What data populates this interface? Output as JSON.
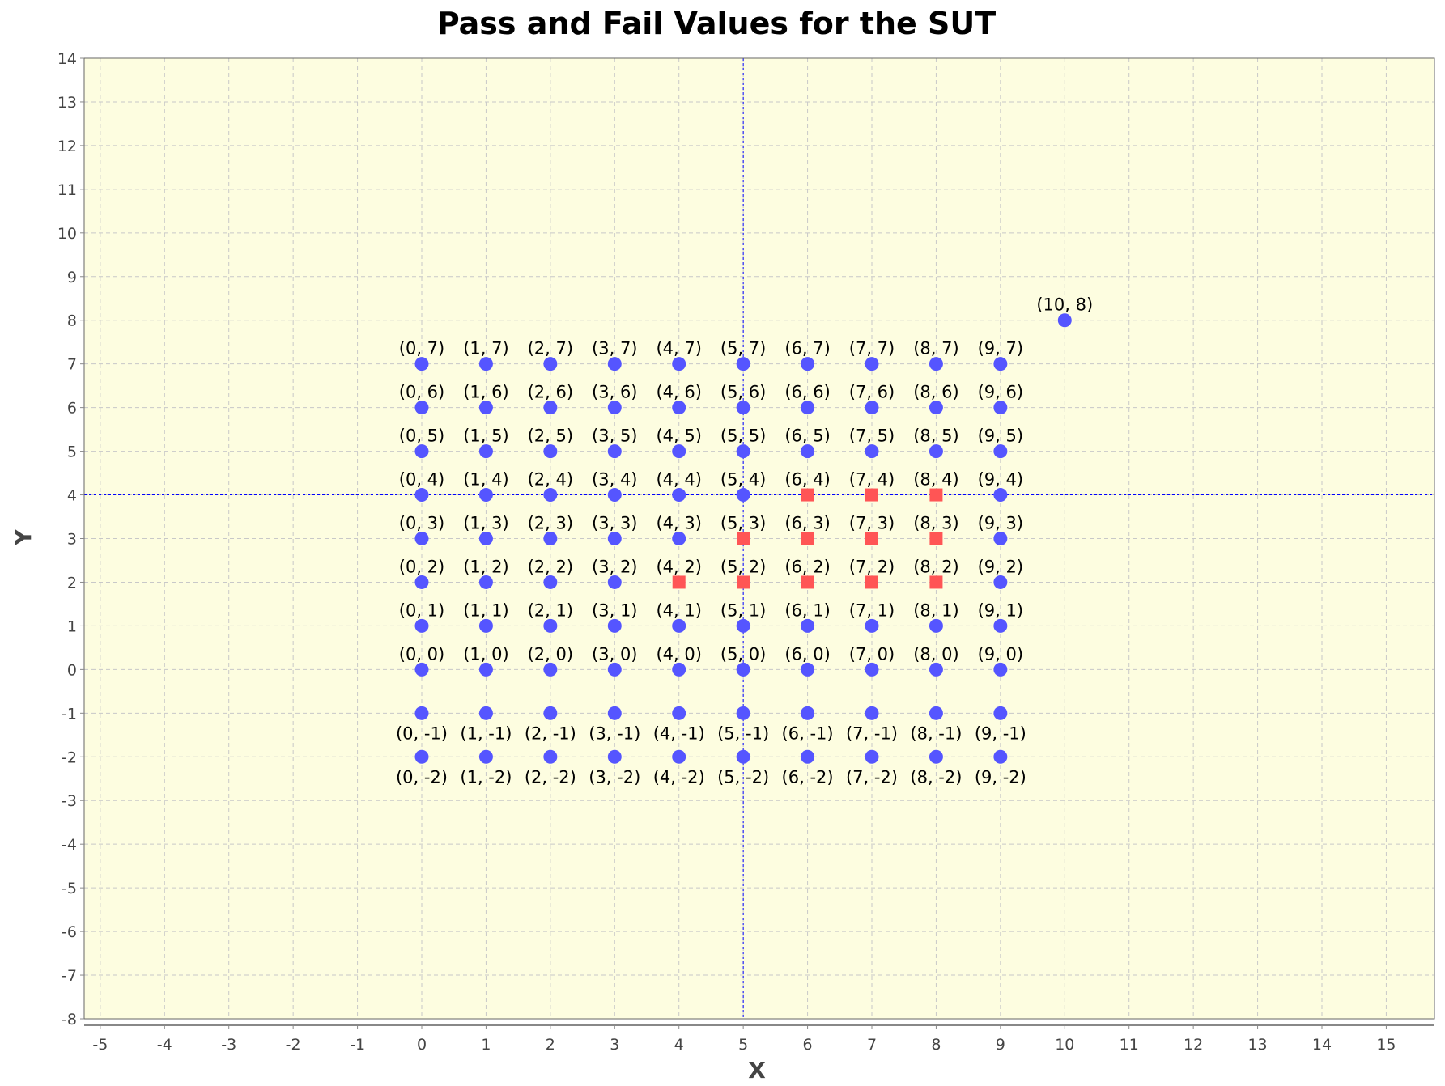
{
  "chart_data": {
    "type": "scatter",
    "title": "Pass and Fail Values for the SUT",
    "xlabel": "X",
    "ylabel": "Y",
    "xlim": [
      -5.25,
      15.75
    ],
    "ylim": [
      -8,
      14
    ],
    "xticks": [
      -5,
      -4,
      -3,
      -2,
      -1,
      0,
      1,
      2,
      3,
      4,
      5,
      6,
      7,
      8,
      9,
      10,
      11,
      12,
      13,
      14,
      15
    ],
    "yticks": [
      -8,
      -7,
      -6,
      -5,
      -4,
      -3,
      -2,
      -1,
      0,
      1,
      2,
      3,
      4,
      5,
      6,
      7,
      8,
      9,
      10,
      11,
      12,
      13,
      14
    ],
    "grid": true,
    "background_color": "#fdfde0",
    "crosshair": {
      "x": 5,
      "y": 4,
      "color": "#0000ff"
    },
    "series": [
      {
        "marker": "circle",
        "color": "#5555ff",
        "points": [
          [
            0,
            7
          ],
          [
            1,
            7
          ],
          [
            2,
            7
          ],
          [
            3,
            7
          ],
          [
            4,
            7
          ],
          [
            5,
            7
          ],
          [
            6,
            7
          ],
          [
            7,
            7
          ],
          [
            8,
            7
          ],
          [
            9,
            7
          ],
          [
            0,
            6
          ],
          [
            1,
            6
          ],
          [
            2,
            6
          ],
          [
            3,
            6
          ],
          [
            4,
            6
          ],
          [
            5,
            6
          ],
          [
            6,
            6
          ],
          [
            7,
            6
          ],
          [
            8,
            6
          ],
          [
            9,
            6
          ],
          [
            0,
            5
          ],
          [
            1,
            5
          ],
          [
            2,
            5
          ],
          [
            3,
            5
          ],
          [
            4,
            5
          ],
          [
            5,
            5
          ],
          [
            6,
            5
          ],
          [
            7,
            5
          ],
          [
            8,
            5
          ],
          [
            9,
            5
          ],
          [
            0,
            4
          ],
          [
            1,
            4
          ],
          [
            2,
            4
          ],
          [
            3,
            4
          ],
          [
            4,
            4
          ],
          [
            5,
            4
          ],
          [
            9,
            4
          ],
          [
            0,
            3
          ],
          [
            1,
            3
          ],
          [
            2,
            3
          ],
          [
            3,
            3
          ],
          [
            4,
            3
          ],
          [
            9,
            3
          ],
          [
            0,
            2
          ],
          [
            1,
            2
          ],
          [
            2,
            2
          ],
          [
            3,
            2
          ],
          [
            9,
            2
          ],
          [
            0,
            1
          ],
          [
            1,
            1
          ],
          [
            2,
            1
          ],
          [
            3,
            1
          ],
          [
            4,
            1
          ],
          [
            5,
            1
          ],
          [
            6,
            1
          ],
          [
            7,
            1
          ],
          [
            8,
            1
          ],
          [
            9,
            1
          ],
          [
            0,
            0
          ],
          [
            1,
            0
          ],
          [
            2,
            0
          ],
          [
            3,
            0
          ],
          [
            4,
            0
          ],
          [
            5,
            0
          ],
          [
            6,
            0
          ],
          [
            7,
            0
          ],
          [
            8,
            0
          ],
          [
            9,
            0
          ],
          [
            0,
            -1
          ],
          [
            1,
            -1
          ],
          [
            2,
            -1
          ],
          [
            3,
            -1
          ],
          [
            4,
            -1
          ],
          [
            5,
            -1
          ],
          [
            6,
            -1
          ],
          [
            7,
            -1
          ],
          [
            8,
            -1
          ],
          [
            9,
            -1
          ],
          [
            0,
            -2
          ],
          [
            1,
            -2
          ],
          [
            2,
            -2
          ],
          [
            3,
            -2
          ],
          [
            4,
            -2
          ],
          [
            5,
            -2
          ],
          [
            6,
            -2
          ],
          [
            7,
            -2
          ],
          [
            8,
            -2
          ],
          [
            9,
            -2
          ],
          [
            10,
            8
          ]
        ]
      },
      {
        "marker": "square",
        "color": "#ff5555",
        "points": [
          [
            6,
            4
          ],
          [
            7,
            4
          ],
          [
            8,
            4
          ],
          [
            5,
            3
          ],
          [
            6,
            3
          ],
          [
            7,
            3
          ],
          [
            8,
            3
          ],
          [
            4,
            2
          ],
          [
            5,
            2
          ],
          [
            6,
            2
          ],
          [
            7,
            2
          ],
          [
            8,
            2
          ]
        ]
      }
    ],
    "labels": [
      "(0, 7)",
      "(1, 7)",
      "(2, 7)",
      "(3, 7)",
      "(4, 7)",
      "(5, 7)",
      "(6, 7)",
      "(7, 7)",
      "(8, 7)",
      "(9, 7)",
      "(0, 6)",
      "(1, 6)",
      "(2, 6)",
      "(3, 6)",
      "(4, 6)",
      "(5, 6)",
      "(6, 6)",
      "(7, 6)",
      "(8, 6)",
      "(9, 6)",
      "(0, 5)",
      "(1, 5)",
      "(2, 5)",
      "(3, 5)",
      "(4, 5)",
      "(5, 5)",
      "(6, 5)",
      "(7, 5)",
      "(8, 5)",
      "(9, 5)",
      "(0, 4)",
      "(1, 4)",
      "(2, 4)",
      "(3, 4)",
      "(4, 4)",
      "(5, 4)",
      "(6, 4)",
      "(7, 4)",
      "(8, 4)",
      "(9, 4)",
      "(0, 3)",
      "(1, 3)",
      "(2, 3)",
      "(3, 3)",
      "(4, 3)",
      "(5, 3)",
      "(6, 3)",
      "(7, 3)",
      "(8, 3)",
      "(9, 3)",
      "(0, 2)",
      "(1, 2)",
      "(2, 2)",
      "(3, 2)",
      "(4, 2)",
      "(5, 2)",
      "(6, 2)",
      "(7, 2)",
      "(8, 2)",
      "(9, 2)",
      "(0, 1)",
      "(1, 1)",
      "(2, 1)",
      "(3, 1)",
      "(4, 1)",
      "(5, 1)",
      "(6, 1)",
      "(7, 1)",
      "(8, 1)",
      "(9, 1)",
      "(0, 0)",
      "(1, 0)",
      "(2, 0)",
      "(3, 0)",
      "(4, 0)",
      "(5, 0)",
      "(6, 0)",
      "(7, 0)",
      "(8, 0)",
      "(9, 0)",
      "(0, -1)",
      "(1, -1)",
      "(2, -1)",
      "(3, -1)",
      "(4, -1)",
      "(5, -1)",
      "(6, -1)",
      "(7, -1)",
      "(8, -1)",
      "(9, -1)",
      "(0, -2)",
      "(1, -2)",
      "(2, -2)",
      "(3, -2)",
      "(4, -2)",
      "(5, -2)",
      "(6, -2)",
      "(7, -2)",
      "(8, -2)",
      "(9, -2)",
      "(10, 8)"
    ]
  }
}
